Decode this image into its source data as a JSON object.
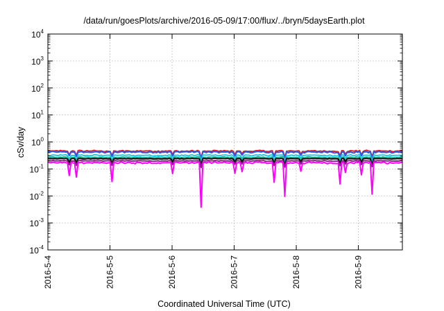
{
  "chart_data": {
    "type": "line",
    "title": "/data/run/goesPlots/archive/2016-05-09/17:00/flux/../bryn/5daysEarth.plot",
    "xlabel": "Coordinated Universal Time (UTC)",
    "ylabel": "cSv/day",
    "x_scale": "time",
    "y_scale": "log",
    "xlim": [
      "2016-05-04",
      "2016-05-09T17:00"
    ],
    "ylim": [
      0.0001,
      10000
    ],
    "x_ticks": [
      "2016-5-4",
      "2016-5-5",
      "2016-5-6",
      "2016-5-7",
      "2016-5-8",
      "2016-5-9"
    ],
    "y_ticks": [
      {
        "base": "10",
        "exp": "-4",
        "value": 0.0001
      },
      {
        "base": "10",
        "exp": "-3",
        "value": 0.001
      },
      {
        "base": "10",
        "exp": "-2",
        "value": 0.01
      },
      {
        "base": "10",
        "exp": "-1",
        "value": 0.1
      },
      {
        "base": "10",
        "exp": "0",
        "value": 1
      },
      {
        "base": "10",
        "exp": "1",
        "value": 10
      },
      {
        "base": "10",
        "exp": "2",
        "value": 100
      },
      {
        "base": "10",
        "exp": "3",
        "value": 1000
      },
      {
        "base": "10",
        "exp": "4",
        "value": 10000
      }
    ],
    "grid": true,
    "legend": "none",
    "series": [
      {
        "color": "#e0202a",
        "level": 0.46,
        "noise": 0.08
      },
      {
        "color": "#2a55e6",
        "level": 0.42,
        "noise": 0.09
      },
      {
        "color": "#22c6e8",
        "level": 0.32,
        "noise": 0.07
      },
      {
        "color": "#20b89a",
        "level": 0.27,
        "noise": 0.06
      },
      {
        "color": "#000000",
        "level": 0.24,
        "noise": 0.04
      },
      {
        "color": "#8c1a8c",
        "level": 0.2,
        "noise": 0.05
      },
      {
        "color": "#ff00ff",
        "level": 0.17,
        "noise": 0.1
      }
    ]
  }
}
